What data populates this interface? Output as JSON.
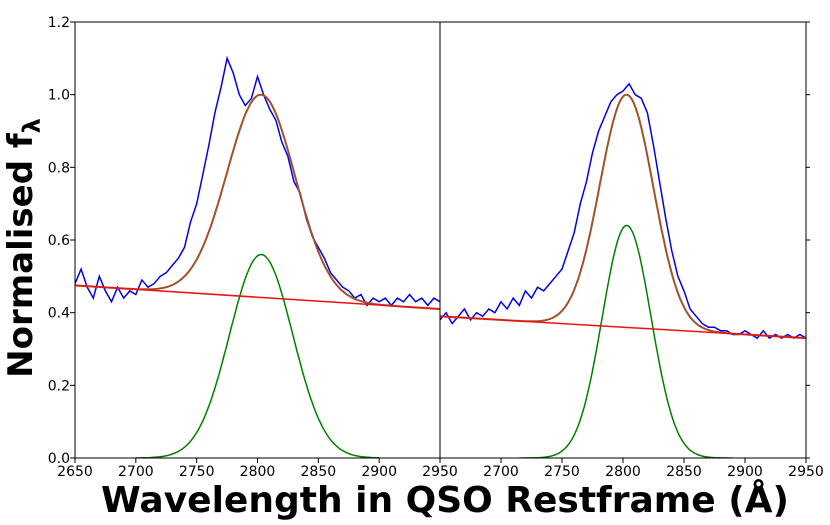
{
  "chart_data": {
    "type": "line",
    "title": "",
    "xlabel": "Wavelength in QSO Restframe (Å)",
    "ylabel_main": "Normalised f",
    "ylabel_subscript": "λ",
    "ylim": [
      0.0,
      1.2
    ],
    "yticks": [
      "0.0",
      "0.2",
      "0.4",
      "0.6",
      "0.8",
      "1.0",
      "1.2"
    ],
    "panels": [
      {
        "xlim": [
          2650,
          2950
        ],
        "xticks": [
          "2650",
          "2700",
          "2750",
          "2800",
          "2850",
          "2900",
          "2950"
        ],
        "continuum": {
          "x": [
            2650,
            2950
          ],
          "y": [
            0.475,
            0.41
          ]
        },
        "gaussian": {
          "center": 2803,
          "amplitude": 0.56,
          "sigma": 26,
          "baseline": 0.0,
          "range": [
            2700,
            2900
          ]
        },
        "total_fit": {
          "center": 2803,
          "peak": 1.0,
          "sigma": 28
        },
        "spectrum": {
          "x": [
            2650,
            2655,
            2660,
            2665,
            2670,
            2675,
            2680,
            2685,
            2690,
            2695,
            2700,
            2705,
            2710,
            2715,
            2720,
            2725,
            2730,
            2735,
            2740,
            2745,
            2750,
            2755,
            2760,
            2765,
            2770,
            2775,
            2780,
            2785,
            2790,
            2795,
            2800,
            2805,
            2810,
            2815,
            2820,
            2825,
            2830,
            2835,
            2840,
            2845,
            2850,
            2855,
            2860,
            2865,
            2870,
            2875,
            2880,
            2885,
            2890,
            2895,
            2900,
            2905,
            2910,
            2915,
            2920,
            2925,
            2930,
            2935,
            2940,
            2945,
            2950
          ],
          "y": [
            0.48,
            0.52,
            0.47,
            0.44,
            0.5,
            0.46,
            0.43,
            0.47,
            0.44,
            0.46,
            0.45,
            0.49,
            0.47,
            0.48,
            0.5,
            0.51,
            0.53,
            0.55,
            0.58,
            0.65,
            0.7,
            0.78,
            0.86,
            0.95,
            1.02,
            1.1,
            1.06,
            1.0,
            0.97,
            0.99,
            1.05,
            1.0,
            0.96,
            0.93,
            0.87,
            0.83,
            0.76,
            0.73,
            0.66,
            0.61,
            0.58,
            0.55,
            0.51,
            0.49,
            0.47,
            0.46,
            0.44,
            0.45,
            0.42,
            0.44,
            0.43,
            0.44,
            0.42,
            0.44,
            0.43,
            0.45,
            0.43,
            0.44,
            0.42,
            0.44,
            0.43
          ]
        }
      },
      {
        "xlim": [
          2650,
          2950
        ],
        "xticks": [
          "",
          "2700",
          "2750",
          "2800",
          "2850",
          "2900",
          "2950"
        ],
        "continuum": {
          "x": [
            2650,
            2950
          ],
          "y": [
            0.39,
            0.33
          ]
        },
        "gaussian": {
          "center": 2803,
          "amplitude": 0.64,
          "sigma": 20,
          "baseline": 0.0,
          "range": [
            2715,
            2890
          ]
        },
        "total_fit": {
          "center": 2803,
          "peak": 1.0,
          "sigma": 22
        },
        "spectrum": {
          "x": [
            2650,
            2655,
            2660,
            2665,
            2670,
            2675,
            2680,
            2685,
            2690,
            2695,
            2700,
            2705,
            2710,
            2715,
            2720,
            2725,
            2730,
            2735,
            2740,
            2745,
            2750,
            2755,
            2760,
            2765,
            2770,
            2775,
            2780,
            2785,
            2790,
            2795,
            2800,
            2805,
            2810,
            2815,
            2820,
            2825,
            2830,
            2835,
            2840,
            2845,
            2850,
            2855,
            2860,
            2865,
            2870,
            2875,
            2880,
            2885,
            2890,
            2895,
            2900,
            2905,
            2910,
            2915,
            2920,
            2925,
            2930,
            2935,
            2940,
            2945,
            2950
          ],
          "y": [
            0.38,
            0.4,
            0.37,
            0.39,
            0.41,
            0.38,
            0.4,
            0.39,
            0.41,
            0.4,
            0.43,
            0.41,
            0.44,
            0.42,
            0.46,
            0.44,
            0.47,
            0.46,
            0.48,
            0.5,
            0.52,
            0.57,
            0.62,
            0.7,
            0.76,
            0.84,
            0.9,
            0.94,
            0.98,
            1.0,
            1.01,
            1.03,
            1.0,
            0.99,
            0.95,
            0.86,
            0.76,
            0.66,
            0.57,
            0.5,
            0.46,
            0.41,
            0.39,
            0.37,
            0.36,
            0.36,
            0.35,
            0.35,
            0.34,
            0.34,
            0.35,
            0.34,
            0.33,
            0.35,
            0.33,
            0.34,
            0.33,
            0.34,
            0.33,
            0.34,
            0.33
          ]
        }
      }
    ],
    "colors": {
      "spectrum": "#0000ee",
      "total_fit": "#a0522d",
      "gaussian": "#008000",
      "continuum": "#ee1111"
    }
  }
}
